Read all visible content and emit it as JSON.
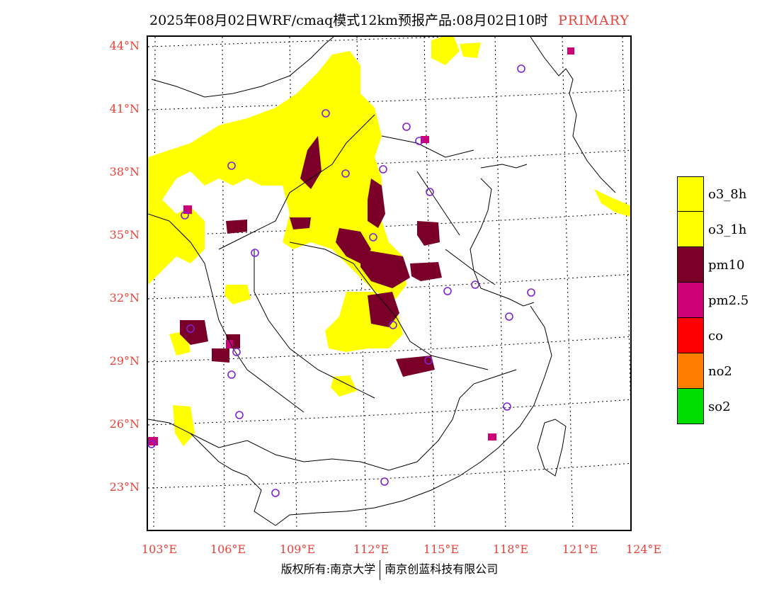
{
  "header": {
    "title": "2025年08月02日WRF/cmaq模式12km预报产品:08月02日10时",
    "tag": "PRIMARY"
  },
  "axes": {
    "lat_labels": [
      "44°N",
      "41°N",
      "38°N",
      "35°N",
      "32°N",
      "29°N",
      "26°N",
      "23°N"
    ],
    "lon_labels": [
      "103°E",
      "106°E",
      "109°E",
      "112°E",
      "115°E",
      "118°E",
      "121°E",
      "124°E"
    ]
  },
  "legend": {
    "items": [
      {
        "label": "o3_8h",
        "color": "#ffff00"
      },
      {
        "label": "o3_1h",
        "color": "#ffff00"
      },
      {
        "label": "pm10",
        "color": "#7a0029"
      },
      {
        "label": "pm2.5",
        "color": "#cc0077"
      },
      {
        "label": "co",
        "color": "#ff0000"
      },
      {
        "label": "no2",
        "color": "#ff8000"
      },
      {
        "label": "so2",
        "color": "#00dd00"
      }
    ]
  },
  "footer": {
    "left": "版权所有:南京大学",
    "right": "南京创蓝科技有限公司"
  }
}
